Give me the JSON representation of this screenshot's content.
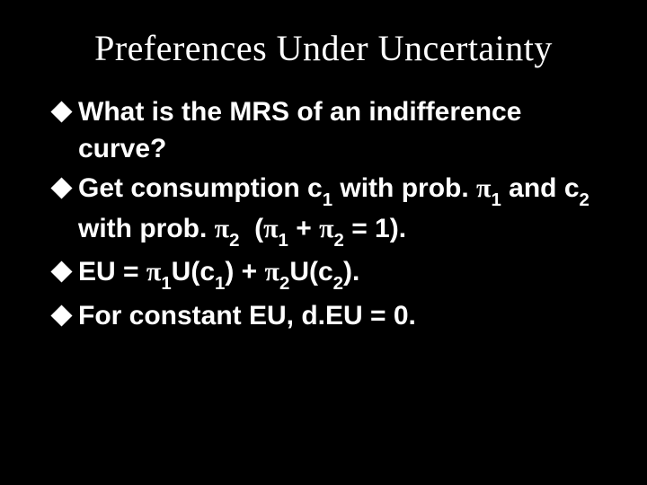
{
  "colors": {
    "background": "#000000",
    "text": "#ffffff",
    "bullet": "#ffffff"
  },
  "typography": {
    "title_font": "Times New Roman",
    "body_font": "Arial",
    "title_fontsize": 40,
    "body_fontsize": 30,
    "body_weight": "bold"
  },
  "title": "Preferences Under Uncertainty",
  "bullets": [
    {
      "lead": "What",
      "rest_html": " is the MRS of an indifference curve?"
    },
    {
      "lead": "Get",
      "rest_html": " consumption c<span class='sub'>1</span> with prob. <span class='pi'>π</span><span class='sub'>1</span> and c<span class='sub'>2</span> with prob. <span class='pi'>π</span><span class='sub'>2</span>&nbsp;&nbsp;(<span class='pi'>π</span><span class='sub'>1</span> + <span class='pi'>π</span><span class='sub'>2</span> = 1)."
    },
    {
      "lead": "EU",
      "rest_html": " = <span class='pi'>π</span><span class='sub'>1</span>U(c<span class='sub'>1</span>) + <span class='pi'>π</span><span class='sub'>2</span>U(c<span class='sub'>2</span>)."
    },
    {
      "lead": "For",
      "rest_html": " constant EU, d.EU = 0."
    }
  ]
}
